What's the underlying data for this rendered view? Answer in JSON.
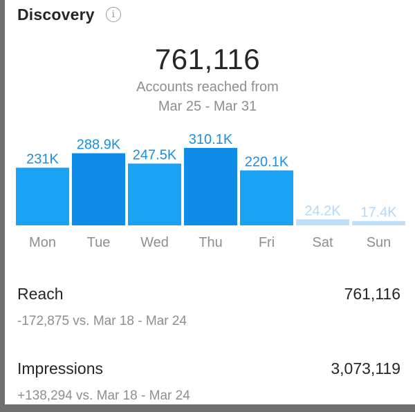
{
  "header": {
    "title": "Discovery",
    "info_icon": "info-icon",
    "info_glyph": "i"
  },
  "summary": {
    "total": "761,116",
    "subtitle_line1": "Accounts reached from",
    "subtitle_line2": "Mar 25 - Mar 31"
  },
  "colors": {
    "bar_primary": "#1a9af0",
    "bar_muted": "#bfe0f8",
    "label_primary": "#1a8ee0",
    "label_muted": "#b5d8f5",
    "day_label": "#8e8e8e"
  },
  "chart_data": {
    "type": "bar",
    "categories": [
      "Mon",
      "Tue",
      "Wed",
      "Thu",
      "Fri",
      "Sat",
      "Sun"
    ],
    "values": [
      231000,
      288900,
      247500,
      310100,
      220100,
      24200,
      17400
    ],
    "data_labels": [
      "231K",
      "288.9K",
      "247.5K",
      "310.1K",
      "220.1K",
      "24.2K",
      "17.4K"
    ],
    "ylim": [
      0,
      310100
    ],
    "grid": false,
    "muted_categories": [
      "Sat",
      "Sun"
    ],
    "highlighted_categories": [
      "Tue",
      "Thu"
    ]
  },
  "metrics": {
    "reach": {
      "label": "Reach",
      "value": "761,116",
      "compare": "-172,875 vs. Mar 18 - Mar 24"
    },
    "impressions": {
      "label": "Impressions",
      "value": "3,073,119",
      "compare": "+138,294 vs. Mar 18 - Mar 24"
    }
  }
}
